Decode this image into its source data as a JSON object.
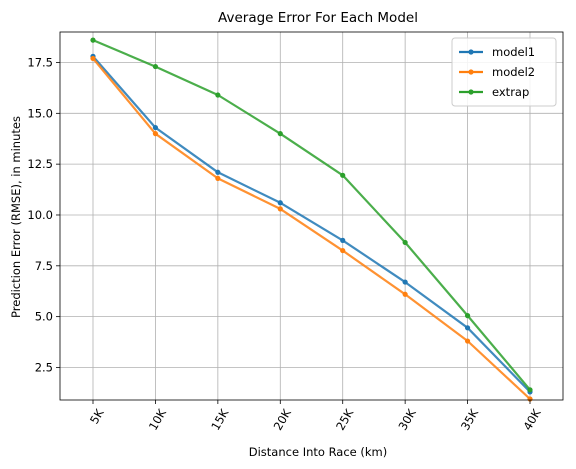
{
  "chart_data": {
    "type": "line",
    "title": "Average Error For Each Model",
    "xlabel": "Distance Into Race (km)",
    "ylabel": "Prediction Error (RMSE), in minutes",
    "categories": [
      "5K",
      "10K",
      "15K",
      "20K",
      "25K",
      "30K",
      "35K",
      "40K"
    ],
    "ylim": [
      0.9,
      19.0
    ],
    "yticks": [
      2.5,
      5.0,
      7.5,
      10.0,
      12.5,
      15.0,
      17.5
    ],
    "ytick_labels": [
      "2.5",
      "5.0",
      "7.5",
      "10.0",
      "12.5",
      "15.0",
      "17.5"
    ],
    "grid": true,
    "legend_position": "top-right",
    "series": [
      {
        "name": "model1",
        "color": "#1f77b4",
        "values": [
          17.8,
          14.3,
          12.1,
          10.6,
          8.75,
          6.7,
          4.45,
          1.3
        ]
      },
      {
        "name": "model2",
        "color": "#ff7f0e",
        "values": [
          17.7,
          14.0,
          11.8,
          10.3,
          8.25,
          6.1,
          3.8,
          0.95
        ]
      },
      {
        "name": "extrap",
        "color": "#2ca02c",
        "values": [
          18.6,
          17.3,
          15.9,
          14.0,
          11.95,
          8.65,
          5.05,
          1.4
        ]
      }
    ]
  }
}
